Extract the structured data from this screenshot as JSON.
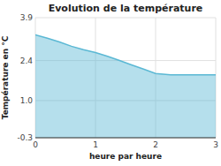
{
  "chart_data": {
    "type": "area",
    "title": "Evolution de la température",
    "xlabel": "heure par heure",
    "ylabel": "Température en °C",
    "x": [
      0,
      0.2,
      0.4,
      0.6,
      0.8,
      1.0,
      1.2,
      1.4,
      1.6,
      1.8,
      2.0,
      2.25,
      2.5,
      2.75,
      3.0
    ],
    "values": [
      3.3,
      3.18,
      3.05,
      2.9,
      2.78,
      2.68,
      2.55,
      2.4,
      2.25,
      2.1,
      1.95,
      1.9,
      1.9,
      1.9,
      1.9
    ],
    "color": "#5bb8d4",
    "xlim": [
      0,
      3
    ],
    "ylim": [
      -0.3,
      3.9
    ],
    "xticks": [
      0,
      1,
      2,
      3
    ],
    "yticks": [
      -0.3,
      {
        "value": 1.0,
        "label": "1.0"
      },
      2.4,
      3.9
    ],
    "grid": true
  }
}
